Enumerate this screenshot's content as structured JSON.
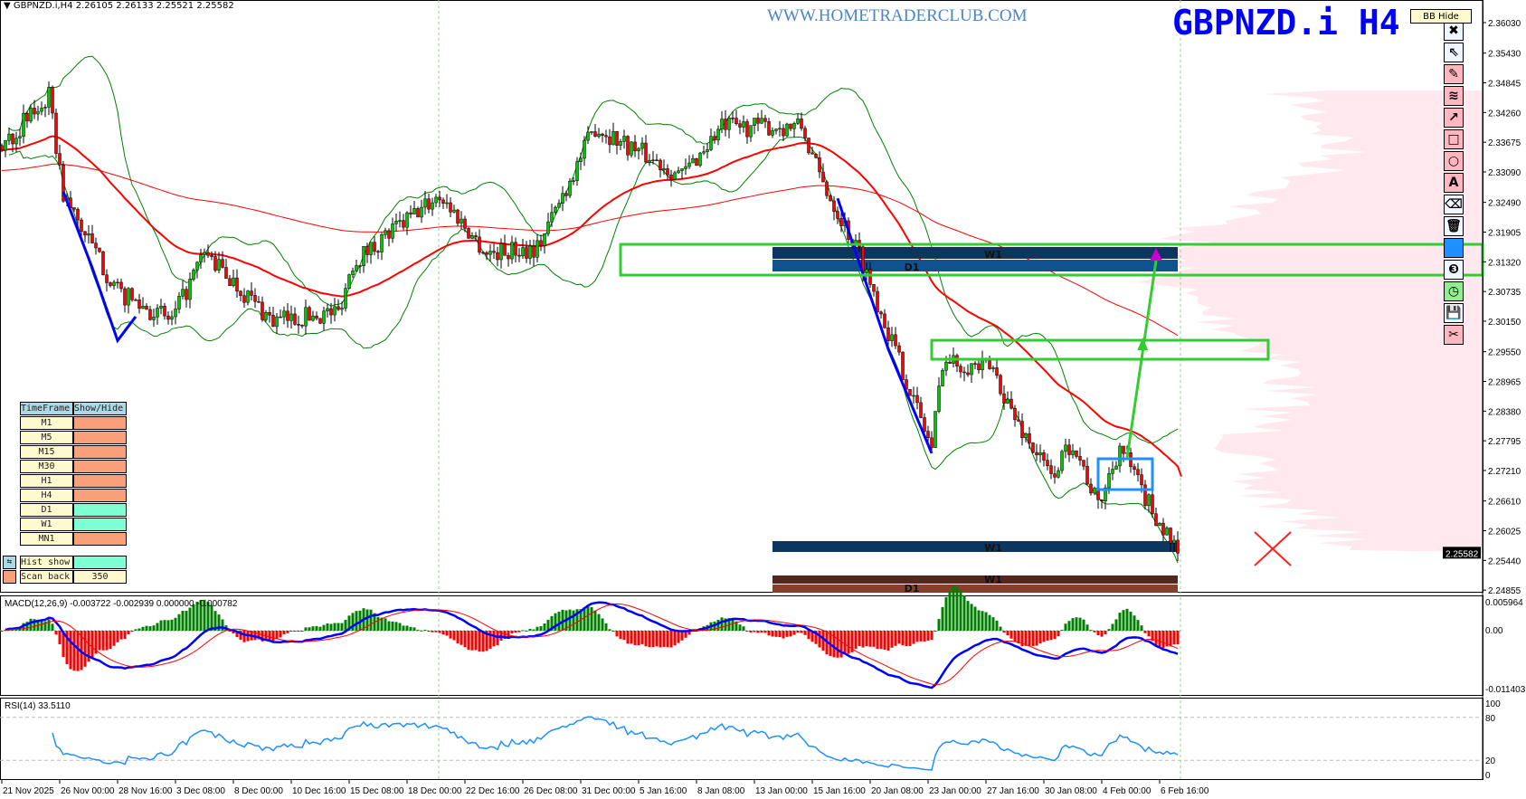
{
  "header": {
    "symbol_info": "GBPNZD.i,H4  2.26105 2.26133 2.25521 2.25582"
  },
  "watermark": "WWW.HOMETRADERCLUB.COM",
  "symbol_title": "GBPNZD.i H4",
  "bb_button": "BB Hide",
  "toolbar": [
    {
      "icon": "close-icon",
      "glyph": "✖",
      "bg": "#eef6ff"
    },
    {
      "icon": "cursor-icon",
      "glyph": "⇖",
      "bg": "#eef6ff"
    },
    {
      "icon": "pencil-icon",
      "glyph": "✎",
      "bg": "#ffb6c1"
    },
    {
      "icon": "waves-icon",
      "glyph": "≋",
      "bg": "#ffb6c1"
    },
    {
      "icon": "arrow-icon",
      "glyph": "↗",
      "bg": "#ffb6c1"
    },
    {
      "icon": "rectangle-icon",
      "glyph": "□",
      "bg": "#ffb6c1"
    },
    {
      "icon": "circle-icon",
      "glyph": "○",
      "bg": "#ffb6c1"
    },
    {
      "icon": "text-icon",
      "glyph": "A",
      "bg": "#ffb6c1"
    },
    {
      "icon": "eraser-icon",
      "glyph": "⌫",
      "bg": "#eef6ff"
    },
    {
      "icon": "trash-icon",
      "glyph": "🗑",
      "bg": "#eef6ff"
    },
    {
      "icon": "color-icon",
      "glyph": "",
      "bg": "#1e90ff"
    },
    {
      "icon": "number-three-icon",
      "glyph": "❸",
      "bg": "#eef6ff"
    },
    {
      "icon": "clock-icon",
      "glyph": "◷",
      "bg": "#90ee90"
    },
    {
      "icon": "save-icon",
      "glyph": "💾",
      "bg": "#eef6ff"
    },
    {
      "icon": "scissors-icon",
      "glyph": "✂",
      "bg": "#ffb6c1"
    }
  ],
  "timeframe_panel": {
    "header": [
      "TimeFrame",
      "Show/Hide"
    ],
    "rows": [
      {
        "tf": "M1",
        "shown": false
      },
      {
        "tf": "M5",
        "shown": false
      },
      {
        "tf": "M15",
        "shown": false
      },
      {
        "tf": "M30",
        "shown": false
      },
      {
        "tf": "H1",
        "shown": false
      },
      {
        "tf": "H4",
        "shown": false
      },
      {
        "tf": "D1",
        "shown": true
      },
      {
        "tf": "W1",
        "shown": true
      },
      {
        "tf": "MN1",
        "shown": false
      }
    ],
    "hist_show_label": "Hist show",
    "hist_show": true,
    "scan_back_label": "Scan back",
    "scan_back_value": "350",
    "colors": {
      "shown": "#7fffd4",
      "hidden": "#f9a07a",
      "label": "#fffacd",
      "header": "#add8e6"
    }
  },
  "colors": {
    "bull": "#00c800",
    "bear": "#ff0000",
    "ma_fast": "#ff0000",
    "bands": "#008000",
    "zone_box": "#33cc33",
    "macd": "#0000ff",
    "signal": "#ff0000",
    "rsi": "#1e90ff",
    "profile": "#ffe4ea"
  },
  "chart_data": {
    "type": "candlestick",
    "symbol": "GBPNZD.i",
    "timeframe": "H4",
    "ylim": [
      2.24855,
      2.3603
    ],
    "price_ticks": [
      "2.36030",
      "2.35430",
      "2.34845",
      "2.34260",
      "2.33675",
      "2.33090",
      "2.32490",
      "2.31905",
      "2.31320",
      "2.30735",
      "2.30150",
      "2.29550",
      "2.28965",
      "2.28380",
      "2.27795",
      "2.27210",
      "2.26610",
      "2.26025",
      "2.25440",
      "2.24855"
    ],
    "current_price": "2.25582",
    "time_ticks": [
      "21 Nov 2025",
      "26 Nov 00:00",
      "28 Nov 16:00",
      "3 Dec 08:00",
      "8 Dec 00:00",
      "10 Dec 16:00",
      "15 Dec 08:00",
      "18 Dec 00:00",
      "22 Dec 16:00",
      "26 Dec 08:00",
      "31 Dec 00:00",
      "5 Jan 16:00",
      "8 Jan 08:00",
      "13 Jan 00:00",
      "15 Jan 16:00",
      "20 Jan 08:00",
      "23 Jan 00:00",
      "27 Jan 16:00",
      "30 Jan 08:00",
      "4 Feb 00:00",
      "6 Feb 16:00"
    ],
    "bars_per_time_tick": 16,
    "bar_count": 326,
    "close_path": [
      [
        0,
        2.3361
      ],
      [
        13,
        2.3456
      ],
      [
        17,
        2.3264
      ],
      [
        32,
        2.3072
      ],
      [
        47,
        2.3015
      ],
      [
        56,
        2.3149
      ],
      [
        75,
        2.3015
      ],
      [
        93,
        2.3034
      ],
      [
        97,
        2.3131
      ],
      [
        121,
        2.3264
      ],
      [
        134,
        2.3149
      ],
      [
        148,
        2.316
      ],
      [
        164,
        2.3398
      ],
      [
        188,
        2.3302
      ],
      [
        199,
        2.3398
      ],
      [
        221,
        2.3398
      ],
      [
        226,
        2.33
      ],
      [
        237,
        2.3149
      ],
      [
        253,
        2.2842
      ],
      [
        257,
        2.2766
      ],
      [
        260,
        2.2938
      ],
      [
        274,
        2.292
      ],
      [
        280,
        2.2823
      ],
      [
        290,
        2.2709
      ],
      [
        296,
        2.278
      ],
      [
        303,
        2.265
      ],
      [
        309,
        2.277
      ],
      [
        315,
        2.268
      ],
      [
        325,
        2.2558
      ]
    ],
    "trend_lines": [
      [
        [
          17,
          2.327
        ],
        [
          25,
          2.312
        ],
        [
          32,
          2.2977
        ],
        [
          37,
          2.3024
        ]
      ],
      [
        [
          231,
          2.3257
        ],
        [
          245,
          2.296
        ],
        [
          257,
          2.2755
        ]
      ]
    ],
    "zones": [
      {
        "label": "W1",
        "from_bar": 213,
        "to_bar": 325,
        "top": 2.31611,
        "bottom": 2.3138,
        "color": "#0d365e"
      },
      {
        "label": "D1",
        "from_bar": 213,
        "to_bar": 325,
        "top": 2.31361,
        "bottom": 2.3113,
        "color": "#105290"
      },
      {
        "label": "W1",
        "from_bar": 213,
        "to_bar": 325,
        "top": 2.2582,
        "bottom": 2.25606,
        "color": "#0d365e"
      },
      {
        "label": "W1",
        "from_bar": 213,
        "to_bar": 325,
        "top": 2.25143,
        "bottom": 2.24983,
        "color": "#52281e"
      },
      {
        "label": "D1",
        "from_bar": 213,
        "to_bar": 325,
        "top": 2.24965,
        "bottom": 2.24805,
        "color": "#84402a"
      }
    ],
    "boxes": [
      {
        "from_bar": 171,
        "to_bar": 410,
        "top": 2.31664,
        "bottom": 2.31058,
        "color": "#33cc33"
      },
      {
        "from_bar": 257,
        "to_bar": 350,
        "top": 2.29775,
        "bottom": 2.29401,
        "color": "#33cc33"
      },
      {
        "from_bar": 303,
        "to_bar": 318,
        "top": 2.27441,
        "bottom": 2.26835,
        "color": "#1e90ff"
      }
    ],
    "projection_arrow": {
      "from": [
        311,
        2.27459
      ],
      "to": [
        319,
        2.31522
      ]
    },
    "indicators": {
      "macd": {
        "label": "MACD(12,26,9) -0.003722 -0.002939 0.000000 -0.000782",
        "ticks": [
          "0.005964",
          "0.00",
          "-0.011403"
        ],
        "range": [
          -0.011403,
          0.005964
        ]
      },
      "rsi": {
        "label": "RSI(14) 33.5110",
        "ticks": [
          "100",
          "80",
          "20",
          "0"
        ],
        "levels": [
          80,
          20
        ]
      }
    }
  }
}
